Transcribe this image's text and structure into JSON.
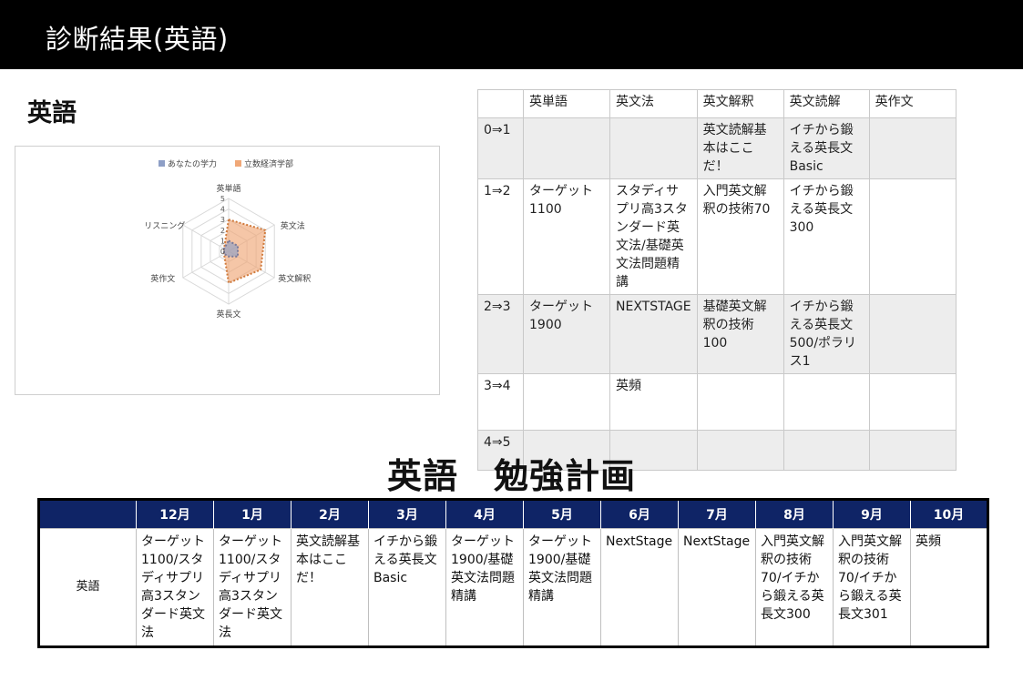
{
  "header": {
    "title": "診断結果(英語)"
  },
  "section": {
    "title": "英語"
  },
  "chart_data": {
    "type": "radar",
    "title": "",
    "legend_position": "top",
    "axes": [
      "英単語",
      "英文法",
      "英文解釈",
      "英長文",
      "英作文",
      "リスニング"
    ],
    "range": [
      0,
      5
    ],
    "ticks": [
      "0",
      "1",
      "2",
      "3",
      "4",
      "5"
    ],
    "series": [
      {
        "name": "あなたの学力",
        "color": "#8e9fc6",
        "values": [
          1,
          1,
          1,
          0.5,
          0.5,
          0.5
        ]
      },
      {
        "name": "立数経済学部",
        "color": "#f0a878",
        "values": [
          3,
          4,
          3.5,
          3,
          0.5,
          0.5
        ]
      }
    ]
  },
  "level_table": {
    "headers": [
      "",
      "英単語",
      "英文法",
      "英文解釈",
      "英文読解",
      "英作文"
    ],
    "rows": [
      {
        "level": "0⇒1",
        "cells": [
          "",
          "",
          "英文読解基本はここだ！",
          "イチから鍛える英長文Basic",
          ""
        ]
      },
      {
        "level": "1⇒2",
        "cells": [
          "ターゲット1100",
          "スタディサプリ高3スタンダード英文法/基礎英文法問題精講",
          "入門英文解釈の技術70",
          "イチから鍛える英長文300",
          ""
        ]
      },
      {
        "level": "2⇒3",
        "cells": [
          "ターゲット1900",
          "NEXTSTAGE",
          "基礎英文解釈の技術100",
          "イチから鍛える英長文500/ポラリス1",
          ""
        ]
      },
      {
        "level": "3⇒4",
        "cells": [
          "",
          "英頻",
          "",
          "",
          ""
        ]
      },
      {
        "level": "4⇒5",
        "cells": [
          "",
          "",
          "",
          "",
          ""
        ]
      }
    ]
  },
  "plan": {
    "title": "英語　勉強計画",
    "months": [
      "12月",
      "1月",
      "2月",
      "3月",
      "4月",
      "5月",
      "6月",
      "7月",
      "8月",
      "9月",
      "10月"
    ],
    "subject": "英語",
    "cells": [
      "ターゲット1100/スタディサプリ高3スタンダード英文法",
      "ターゲット1100/スタディサプリ高3スタンダード英文法",
      "英文読解基本はここだ！",
      "イチから鍛える英長文Basic",
      "ターゲット1900/基礎英文法問題精講",
      "ターゲット1900/基礎英文法問題精講",
      "NextStage",
      "NextStage",
      "入門英文解釈の技術70/イチから鍛える英長文300",
      "入門英文解釈の技術70/イチから鍛える英長文301",
      "英頻"
    ]
  }
}
